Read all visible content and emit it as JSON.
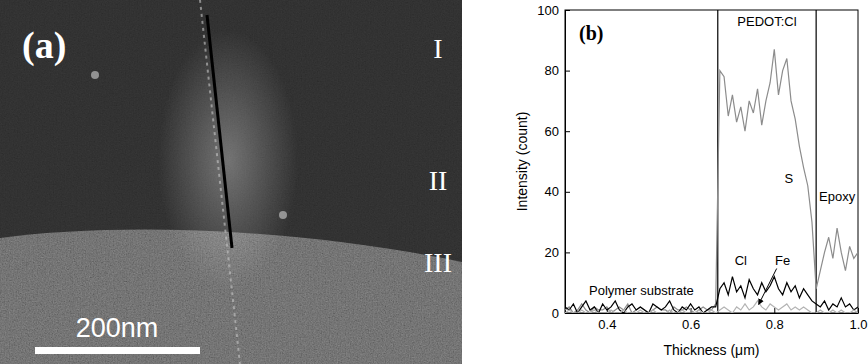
{
  "image": {
    "panel_label": "(a)",
    "regions": [
      "I",
      "II",
      "III"
    ],
    "scale_bar": "200nm"
  },
  "chart_data": {
    "type": "line",
    "panel_label": "(b)",
    "x_label": "Thickness (μm)",
    "y_label": "Intensity (count)",
    "annotations": [
      "Polymer substrate",
      "PEDOT:Cl",
      "Epoxy"
    ],
    "boundaries": [
      0.665,
      0.9
    ],
    "x": [
      0.3,
      0.31,
      0.32,
      0.33,
      0.34,
      0.35,
      0.36,
      0.37,
      0.38,
      0.39,
      0.4,
      0.41,
      0.42,
      0.43,
      0.44,
      0.45,
      0.46,
      0.47,
      0.48,
      0.49,
      0.5,
      0.51,
      0.52,
      0.53,
      0.54,
      0.55,
      0.56,
      0.57,
      0.58,
      0.59,
      0.6,
      0.61,
      0.62,
      0.63,
      0.64,
      0.65,
      0.66,
      0.67,
      0.68,
      0.69,
      0.7,
      0.71,
      0.72,
      0.73,
      0.74,
      0.75,
      0.76,
      0.77,
      0.78,
      0.79,
      0.8,
      0.81,
      0.82,
      0.83,
      0.84,
      0.85,
      0.86,
      0.87,
      0.88,
      0.89,
      0.9,
      0.91,
      0.92,
      0.93,
      0.94,
      0.95,
      0.96,
      0.97,
      0.98,
      0.99,
      1.0
    ],
    "series": [
      {
        "name": "S",
        "color": "#8c8c8c",
        "line_style": "solid",
        "values": [
          1,
          2,
          0,
          1,
          3,
          1,
          0,
          2,
          1,
          1,
          2,
          0,
          1,
          2,
          1,
          3,
          0,
          1,
          2,
          1,
          0,
          1,
          2,
          1,
          1,
          0,
          2,
          1,
          1,
          2,
          1,
          0,
          1,
          2,
          1,
          1,
          3,
          80,
          78,
          65,
          72,
          63,
          68,
          60,
          70,
          66,
          74,
          62,
          70,
          76,
          87,
          72,
          80,
          84,
          70,
          64,
          55,
          48,
          42,
          30,
          8,
          14,
          20,
          25,
          18,
          28,
          20,
          14,
          22,
          18,
          20
        ]
      },
      {
        "name": "Cl",
        "color": "#000000",
        "line_style": "solid",
        "values": [
          2,
          1,
          3,
          0,
          2,
          4,
          1,
          2,
          0,
          3,
          1,
          2,
          4,
          1,
          0,
          2,
          3,
          1,
          2,
          1,
          0,
          3,
          2,
          1,
          2,
          4,
          1,
          0,
          2,
          1,
          3,
          1,
          2,
          0,
          1,
          2,
          2,
          8,
          10,
          6,
          12,
          7,
          9,
          5,
          11,
          8,
          6,
          10,
          7,
          9,
          12,
          8,
          6,
          10,
          7,
          9,
          5,
          8,
          6,
          4,
          3,
          2,
          4,
          1,
          3,
          2,
          5,
          2,
          3,
          1,
          2
        ]
      },
      {
        "name": "Fe",
        "color": "#b4b4b4",
        "line_style": "solid",
        "values": [
          0,
          1,
          0,
          0,
          1,
          0,
          0,
          1,
          0,
          0,
          0,
          1,
          0,
          0,
          1,
          0,
          0,
          0,
          1,
          0,
          0,
          1,
          0,
          0,
          0,
          1,
          0,
          0,
          1,
          0,
          0,
          0,
          1,
          0,
          0,
          1,
          0,
          1,
          2,
          1,
          0,
          2,
          1,
          3,
          1,
          2,
          4,
          2,
          1,
          3,
          2,
          1,
          2,
          3,
          1,
          2,
          1,
          2,
          1,
          0,
          0,
          1,
          0,
          0,
          1,
          0,
          1,
          0,
          0,
          1,
          0
        ]
      }
    ],
    "xlim": [
      0.3,
      1.0
    ],
    "xticks": [
      0.4,
      0.6,
      0.8,
      {
        "value": 1.0,
        "label": "1.0"
      }
    ],
    "ylim": [
      0,
      100
    ],
    "yticks": [
      0,
      20,
      40,
      60,
      80,
      100
    ],
    "grid": false
  }
}
